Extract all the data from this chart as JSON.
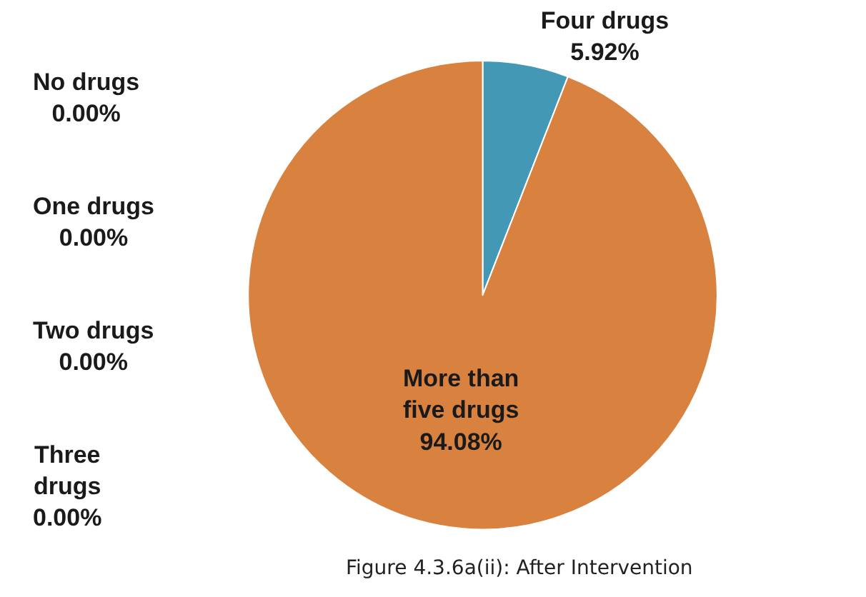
{
  "chart_data": {
    "type": "pie",
    "categories": [
      "No drugs",
      "One drugs",
      "Two drugs",
      "Three drugs",
      "Four drugs",
      "More than five drugs"
    ],
    "values": [
      0,
      0,
      0,
      0,
      5.92,
      94.08
    ],
    "value_labels": [
      "0.00%",
      "0.00%",
      "0.00%",
      "0.00%",
      "5.92%",
      "94.08%"
    ],
    "colors": [
      null,
      null,
      null,
      null,
      "#4298b5",
      "#d9813f"
    ],
    "annotations": [
      "Figure 4.3.6a(ii): After Intervention"
    ]
  }
}
